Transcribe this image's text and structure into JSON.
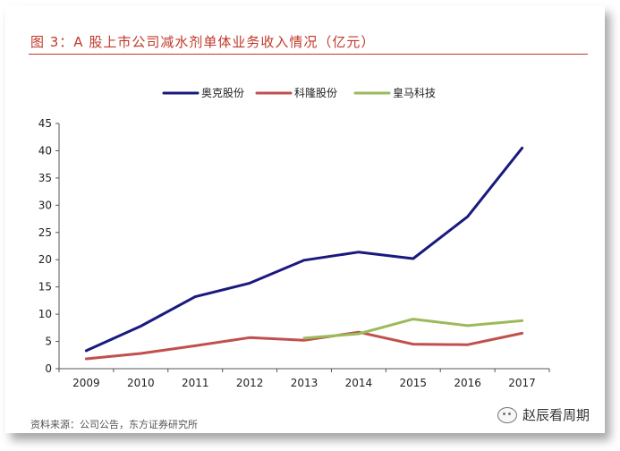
{
  "title": "图 3：A 股上市公司减水剂单体业务收入情况（亿元）",
  "source": "资料来源：公司公告，东方证券研究所",
  "watermark": "赵辰看周期",
  "chart_data": {
    "type": "line",
    "title": "图 3：A 股上市公司减水剂单体业务收入情况（亿元）",
    "xlabel": "",
    "ylabel": "",
    "categories": [
      "2009",
      "2010",
      "2011",
      "2012",
      "2013",
      "2014",
      "2015",
      "2016",
      "2017"
    ],
    "ylim": [
      0,
      45
    ],
    "yticks": [
      0,
      5,
      10,
      15,
      20,
      25,
      30,
      35,
      40,
      45
    ],
    "legend_position": "top",
    "series": [
      {
        "name": "奥克股份",
        "color": "#1a1a7e",
        "values": [
          3.3,
          7.8,
          13.2,
          15.7,
          19.9,
          21.4,
          20.2,
          27.9,
          40.5
        ]
      },
      {
        "name": "科隆股份",
        "color": "#c0504d",
        "values": [
          1.8,
          2.8,
          4.2,
          5.7,
          5.2,
          6.7,
          4.5,
          4.4,
          6.5
        ]
      },
      {
        "name": "皇马科技",
        "color": "#9bbb59",
        "values": [
          null,
          null,
          null,
          null,
          5.6,
          6.4,
          9.1,
          7.9,
          8.8
        ]
      }
    ]
  }
}
